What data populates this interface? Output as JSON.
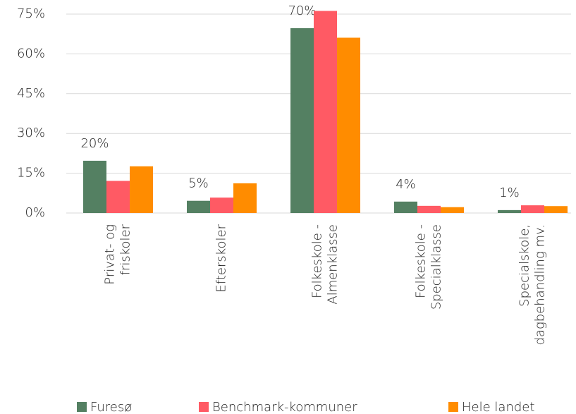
{
  "chart_data": {
    "type": "bar",
    "categories": [
      [
        "Privat- og",
        "friskoler"
      ],
      [
        "Efterskoler"
      ],
      [
        "Folkeskole -",
        "Almenklasse"
      ],
      [
        "Folkeskole -",
        "Specialklasse"
      ],
      [
        "Specialskole,",
        "dagbehandling mv."
      ]
    ],
    "series": [
      {
        "name": "Furesø",
        "color": "#548062",
        "values": [
          19.7,
          4.6,
          69.7,
          4.3,
          1.1
        ],
        "value_labels": [
          "20%",
          "5%",
          "70%",
          "4%",
          "1%"
        ]
      },
      {
        "name": "Benchmark-kommuner",
        "color": "#ff5a64",
        "values": [
          12.1,
          5.8,
          76.2,
          2.7,
          2.9
        ]
      },
      {
        "name": "Hele landet",
        "color": "#ff8c00",
        "values": [
          17.6,
          11.2,
          66.1,
          2.2,
          2.6
        ]
      }
    ],
    "ylim": [
      0,
      80
    ],
    "yticks": [
      {
        "value": 0,
        "label": "0%"
      },
      {
        "value": 15,
        "label": "15%"
      },
      {
        "value": 30,
        "label": "30%"
      },
      {
        "value": 45,
        "label": "45%"
      },
      {
        "value": 60,
        "label": "60%"
      },
      {
        "value": 75,
        "label": "75%"
      }
    ],
    "grid": true,
    "legend": "bottom"
  }
}
